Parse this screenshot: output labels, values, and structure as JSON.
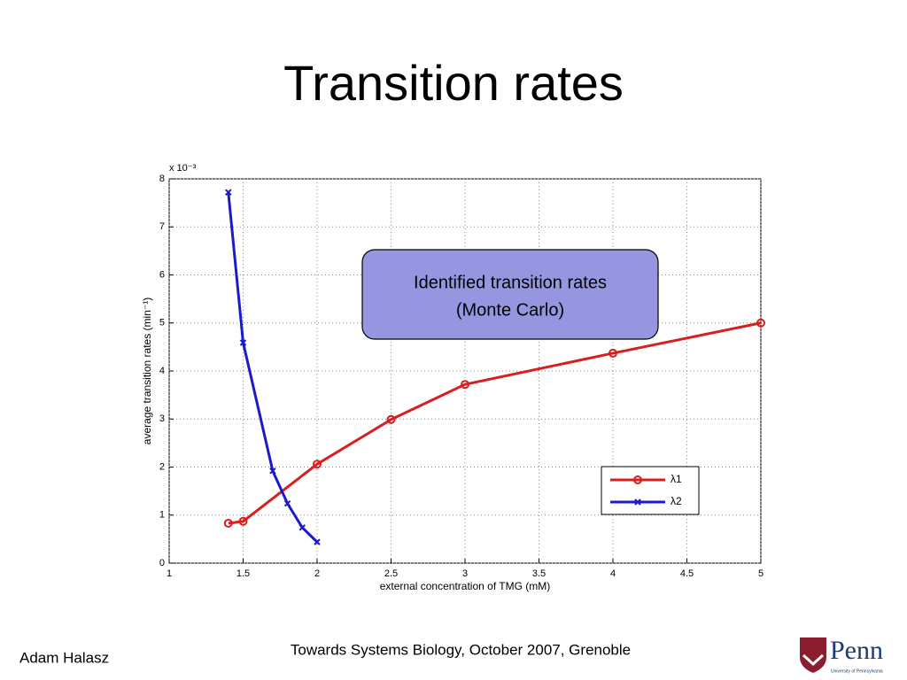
{
  "slide": {
    "title": "Transition rates",
    "author": "Adam Halasz",
    "footer": "Towards Systems Biology, October 2007, Grenoble",
    "logo": "Penn",
    "logo_sub": "University of Pennsylvania"
  },
  "chart_data": {
    "type": "line",
    "xlabel": "external concentration of TMG (mM)",
    "ylabel": "average transition rates (min⁻¹)",
    "y_multiplier": "x 10⁻³",
    "annotation": [
      "Identified transition rates",
      "(Monte Carlo)"
    ],
    "xlim": [
      1,
      5
    ],
    "xticks": [
      1,
      1.5,
      2,
      2.5,
      3,
      3.5,
      4,
      4.5,
      5
    ],
    "ylim": [
      0,
      8
    ],
    "yticks": [
      0,
      1,
      2,
      3,
      4,
      5,
      6,
      7,
      8
    ],
    "grid": true,
    "legend": "lower right",
    "series": [
      {
        "name": "λ1",
        "color": "#d81e1e",
        "marker": "o",
        "x": [
          1.4,
          1.5,
          2,
          2.5,
          3,
          4,
          5
        ],
        "values": [
          0.83,
          0.87,
          2.06,
          2.99,
          3.72,
          4.37,
          5.0
        ]
      },
      {
        "name": "λ2",
        "color": "#1a1acc",
        "marker": "x",
        "x": [
          1.4,
          1.5,
          1.7,
          1.8,
          1.9,
          2
        ],
        "values": [
          7.72,
          4.59,
          1.92,
          1.24,
          0.74,
          0.44
        ]
      }
    ]
  }
}
